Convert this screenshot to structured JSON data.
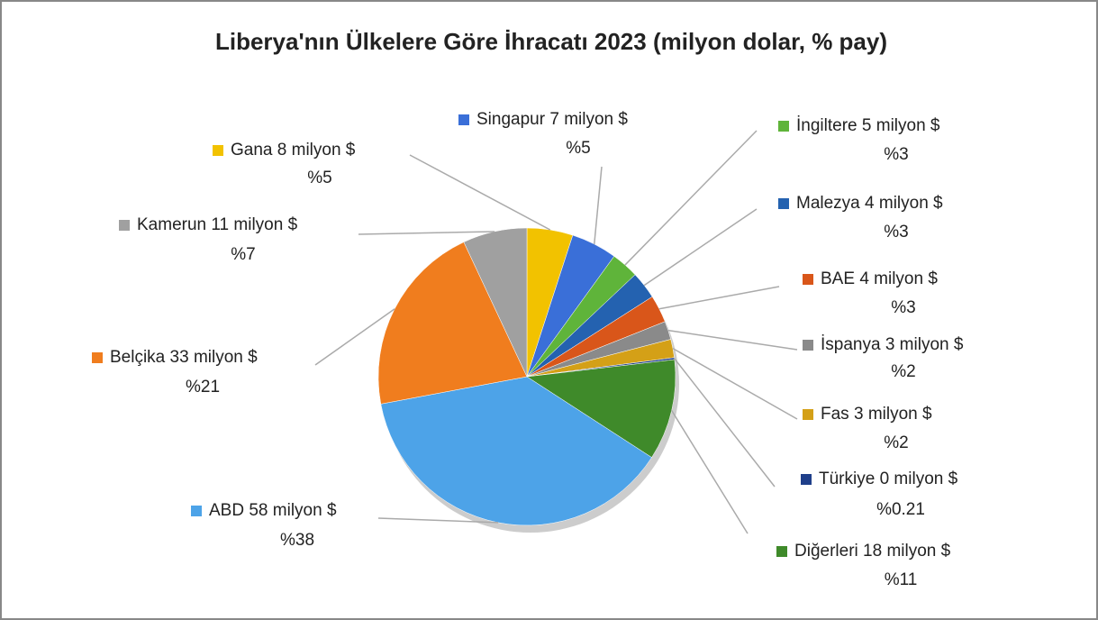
{
  "chart_data": {
    "type": "pie",
    "title": "Liberya'nın Ülkelere Göre İhracatı 2023 (milyon dolar, % pay)",
    "categories": [
      "Gana",
      "Singapur",
      "İngiltere",
      "Malezya",
      "BAE",
      "İspanya",
      "Fas",
      "Türkiye",
      "Diğerleri",
      "ABD",
      "Belçika",
      "Kamerun"
    ],
    "values": [
      5,
      5,
      3,
      3,
      3,
      2,
      2,
      0.21,
      11,
      38,
      21,
      7
    ],
    "value_labels": [
      "%5",
      "%5",
      "%3",
      "%3",
      "%3",
      "%2",
      "%2",
      "%0.21",
      "%11",
      "%38",
      "%21",
      "%7"
    ],
    "amounts": [
      8,
      7,
      5,
      4,
      4,
      3,
      3,
      0,
      18,
      58,
      33,
      11
    ],
    "amount_labels": [
      "8 milyon $",
      "7 milyon $",
      "5 milyon $",
      "4 milyon $",
      "4 milyon $",
      "3 milyon $",
      "3 milyon $",
      "0 milyon $",
      "18 milyon $",
      "58 milyon $",
      "33 milyon $",
      "11 milyon $"
    ],
    "colors": [
      "#f2c200",
      "#3a6fd8",
      "#5fb43a",
      "#2462b0",
      "#d9561a",
      "#8a8a8a",
      "#d4a017",
      "#1f3f8a",
      "#3f8a2a",
      "#4da3e8",
      "#f07d1e",
      "#a0a0a0"
    ]
  }
}
